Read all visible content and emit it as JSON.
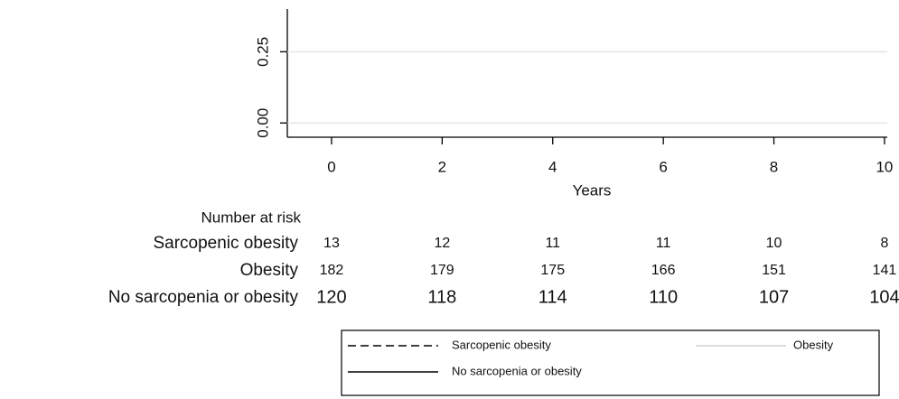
{
  "chart_data": {
    "type": "line",
    "xlabel": "Years",
    "xlim": [
      -0.8,
      10.05
    ],
    "xticks": [
      0,
      2,
      4,
      6,
      8,
      10
    ],
    "ylim": [
      -0.05,
      0.4
    ],
    "yticks": [
      {
        "value": 0,
        "label": "0.00"
      },
      {
        "value": 0.25,
        "label": "0.25"
      }
    ],
    "grid": true,
    "series": [
      {
        "name": "Sarcopenic obesity",
        "color": "#000000",
        "dash": "dashed"
      },
      {
        "name": "Obesity",
        "color": "#d0d0d0",
        "dash": "solid"
      },
      {
        "name": "No sarcopenia or obesity",
        "color": "#000000",
        "dash": "solid"
      }
    ],
    "risk_table": {
      "title": "Number at risk",
      "rows": [
        {
          "name": "Sarcopenic obesity",
          "values": [
            13,
            12,
            11,
            11,
            10,
            8
          ]
        },
        {
          "name": "Obesity",
          "values": [
            182,
            179,
            175,
            166,
            151,
            141
          ]
        },
        {
          "name": "No sarcopenia or obesity",
          "values": [
            120,
            118,
            114,
            110,
            107,
            104
          ]
        }
      ]
    }
  }
}
